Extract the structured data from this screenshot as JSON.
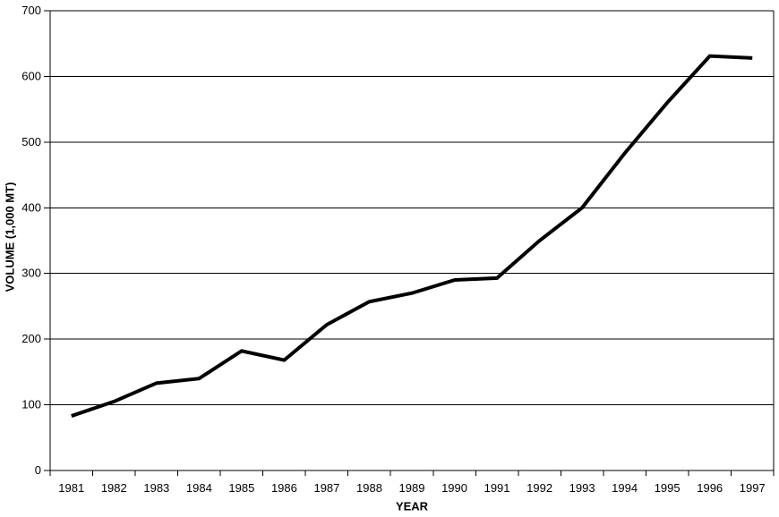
{
  "chart_data": {
    "type": "line",
    "title": "",
    "xlabel": "YEAR",
    "ylabel": "VOLUME (1,000 MT)",
    "categories": [
      "1981",
      "1982",
      "1983",
      "1984",
      "1985",
      "1986",
      "1987",
      "1988",
      "1989",
      "1990",
      "1991",
      "1992",
      "1993",
      "1994",
      "1995",
      "1996",
      "1997"
    ],
    "series": [
      {
        "name": "Volume",
        "values": [
          83,
          105,
          133,
          140,
          182,
          168,
          222,
          257,
          270,
          290,
          293,
          350,
          400,
          483,
          560,
          631,
          628
        ]
      }
    ],
    "ylim": [
      0,
      700
    ],
    "yticks": [
      0,
      100,
      200,
      300,
      400,
      500,
      600,
      700
    ],
    "grid": "horizontal",
    "legend_position": "none",
    "line_color": "#000000",
    "line_width": 4,
    "axis_color": "#000000",
    "gridline_color": "#000000",
    "background_color": "#ffffff"
  }
}
